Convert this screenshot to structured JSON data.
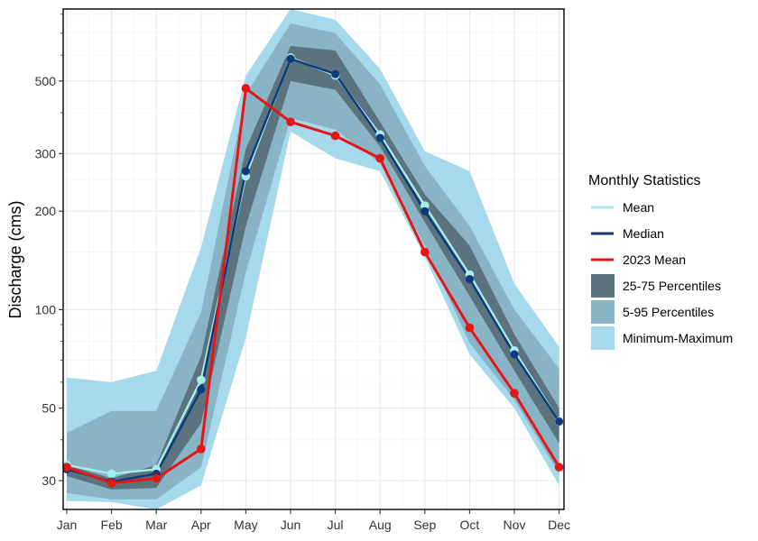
{
  "chart_data": {
    "type": "line",
    "ylabel": "Discharge (cms)",
    "xlabel": "",
    "yscale": "log",
    "ylim": [
      24.5,
      830
    ],
    "yticks": [
      30,
      50,
      100,
      200,
      300,
      500
    ],
    "grid": true,
    "legend_position": "right",
    "legend_title": "Monthly Statistics",
    "categories": [
      "Jan",
      "Feb",
      "Mar",
      "Apr",
      "May",
      "Jun",
      "Jul",
      "Aug",
      "Sep",
      "Oct",
      "Nov",
      "Dec"
    ],
    "bands": [
      {
        "name": "Minimum-Maximum",
        "color": "#a6d9ec",
        "low": [
          26,
          25.8,
          24.5,
          29,
          82,
          350,
          290,
          265,
          145,
          73,
          50,
          29
        ],
        "high": [
          62,
          60,
          65,
          155,
          520,
          830,
          770,
          545,
          305,
          265,
          120,
          77
        ]
      },
      {
        "name": "5-95 Percentiles",
        "color": "#89b4c6",
        "low": [
          27.5,
          26.3,
          26.3,
          33,
          130,
          385,
          355,
          280,
          157,
          79,
          53,
          31.5
        ],
        "high": [
          42,
          49,
          49,
          98,
          455,
          750,
          700,
          488,
          275,
          180,
          100,
          66
        ]
      },
      {
        "name": "25-75 Percentiles",
        "color": "#5a737d",
        "low": [
          31,
          28.2,
          28.5,
          45,
          180,
          500,
          470,
          315,
          185,
          110,
          65,
          39
        ],
        "high": [
          33.5,
          30.5,
          33.5,
          72,
          310,
          640,
          620,
          375,
          225,
          157,
          84,
          50
        ]
      }
    ],
    "series": [
      {
        "name": "Mean",
        "color": "#a8ecec",
        "values": [
          33.5,
          31.5,
          32.5,
          61,
          256,
          590,
          520,
          343,
          208,
          128,
          75,
          45.5
        ]
      },
      {
        "name": "Median",
        "color": "#0b3b7a",
        "values": [
          32.5,
          29.8,
          31.5,
          57,
          265,
          585,
          525,
          335,
          200,
          124,
          73,
          45.5
        ]
      },
      {
        "name": "2023 Mean",
        "color": "#e51616",
        "values": [
          33,
          29.5,
          30.5,
          37.5,
          475,
          375,
          340,
          290,
          150,
          88,
          55.5,
          33
        ]
      }
    ]
  }
}
